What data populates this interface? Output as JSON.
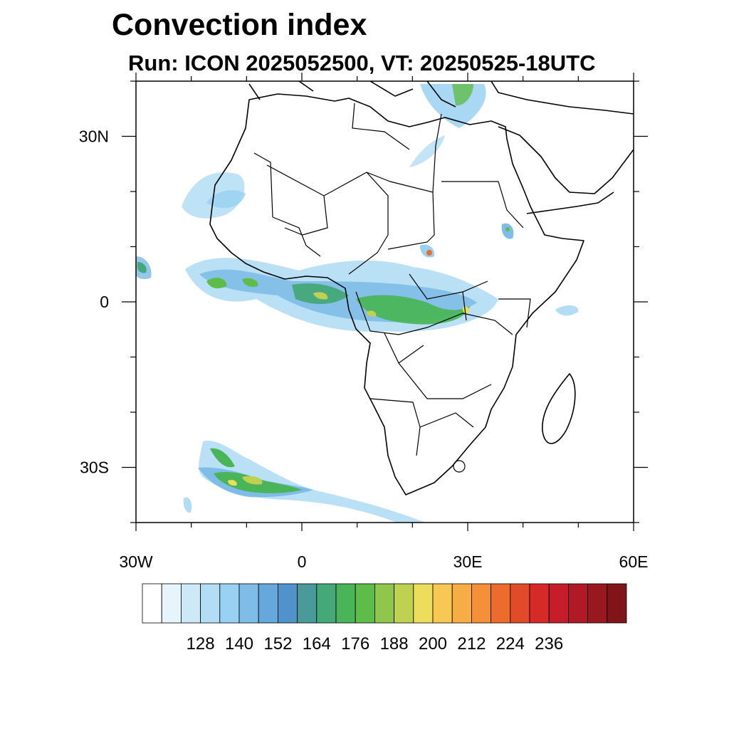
{
  "header": {
    "title": "Convection index",
    "subtitle": "Run: ICON 2025052500,  VT: 20250525-18UTC"
  },
  "map": {
    "projection": "equirectangular",
    "lon_range": [
      -30,
      60
    ],
    "lat_range": [
      -40,
      40
    ],
    "x_ticks": [
      {
        "lon": -30,
        "label": "30W"
      },
      {
        "lon": 0,
        "label": "0"
      },
      {
        "lon": 30,
        "label": "30E"
      },
      {
        "lon": 60,
        "label": "60E"
      }
    ],
    "y_ticks": [
      {
        "lat": 30,
        "label": "30N"
      },
      {
        "lat": 0,
        "label": "0"
      },
      {
        "lat": -30,
        "label": "30S"
      }
    ],
    "minor_lon_step": 10,
    "minor_lat_step": 10
  },
  "colorbar": {
    "colors": [
      "#ffffff",
      "#e6f4fb",
      "#cce9f8",
      "#b3ddf5",
      "#99d1f2",
      "#7fbde8",
      "#66a7dc",
      "#5093cc",
      "#4a9a9a",
      "#45a878",
      "#49b558",
      "#5ebd48",
      "#90c64a",
      "#bfd151",
      "#ecde5a",
      "#f8c952",
      "#f6ad45",
      "#f39038",
      "#ec6c2e",
      "#e24b2a",
      "#d62a28",
      "#c51e2a",
      "#b01a26",
      "#981820",
      "#7f1518"
    ],
    "labels": [
      "128",
      "140",
      "152",
      "164",
      "176",
      "188",
      "200",
      "212",
      "224",
      "236"
    ]
  }
}
